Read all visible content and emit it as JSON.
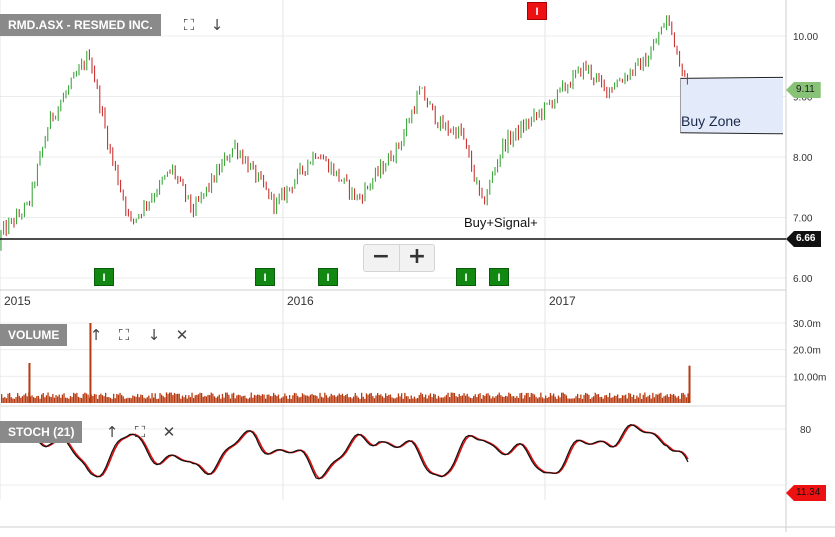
{
  "main": {
    "title": "RMD.ASX - RESMED INC.",
    "annotation_buy_signal": "Buy+Signal+",
    "zone_label": "Buy Zone",
    "last_price_badge": "9.11",
    "support_badge": "6.66",
    "zoom_out_label": "−",
    "zoom_in_label": "+",
    "signal_label": "I",
    "y_ticks": [
      "10.00",
      "9.00",
      "8.00",
      "7.00",
      "6.00"
    ],
    "x_ticks": [
      "2015",
      "2016",
      "2017"
    ]
  },
  "volume": {
    "title": "VOLUME",
    "y_ticks": [
      "30.0m",
      "20.0m",
      "10.00m"
    ]
  },
  "stoch": {
    "title": "STOCH (21)",
    "y_ticks": [
      "80"
    ],
    "last_badge": "11.34"
  },
  "icons": {
    "expand": "expand-icon",
    "down": "arrow-down-icon",
    "up": "arrow-up-icon",
    "close": "close-icon"
  },
  "colors": {
    "up_candle": "#2aa02a",
    "down_candle": "#c62020",
    "volume": "#b83a10",
    "stoch_k": "#111111",
    "stoch_d": "#dd1111",
    "support_line": "#111111",
    "zone_fill": "#e3ebfb",
    "price_badge": "#88c276",
    "signal_buy": "#118811",
    "signal_alert": "#ee1111"
  },
  "chart_data": [
    {
      "type": "line",
      "series": [
        {
          "x": [
            "2014-11",
            "2015-01",
            "2015-02",
            "2015-04",
            "2015-05",
            "2015-06",
            "2015-08",
            "2015-09",
            "2015-11",
            "2016-01",
            "2016-03",
            "2016-05",
            "2016-07",
            "2016-08",
            "2016-09",
            "2016-10",
            "2016-11",
            "2016-12",
            "2017-02",
            "2017-04",
            "2017-05",
            "2017-07",
            "2017-08",
            "2017-09"
          ],
          "values": [
            6.5,
            7.2,
            8.6,
            9.7,
            8.1,
            6.9,
            7.8,
            7.1,
            8.2,
            7.2,
            8.1,
            7.3,
            8.2,
            9.1,
            8.5,
            8.4,
            7.2,
            8.2,
            8.8,
            9.5,
            9.1,
            9.6,
            10.3,
            9.1
          ]
        }
      ],
      "ylim": [
        5.8,
        10.5
      ],
      "support_level": 6.66,
      "last_value": 9.11,
      "buy_zone": [
        8.4,
        9.3
      ],
      "annotations": [
        "Buy+Signal+",
        "Buy Zone"
      ]
    },
    {
      "type": "bar",
      "title": "VOLUME",
      "categories": [
        "2014-11",
        "2015-01",
        "2015-04",
        "2015-07",
        "2015-10",
        "2016-01",
        "2016-04",
        "2016-07",
        "2016-10",
        "2017-01",
        "2017-04",
        "2017-07",
        "2017-09"
      ],
      "values": [
        3,
        15,
        30,
        4,
        3,
        4,
        4,
        3,
        3,
        3,
        3,
        3,
        14
      ],
      "ylim": [
        0,
        33
      ]
    },
    {
      "type": "line",
      "title": "STOCH (21)",
      "series": [
        {
          "x": [
            "2014-11",
            "2015-02",
            "2015-04",
            "2015-06",
            "2015-09",
            "2015-12",
            "2016-03",
            "2016-06",
            "2016-09",
            "2016-11",
            "2017-02",
            "2017-05",
            "2017-08",
            "2017-09"
          ],
          "values": [
            85,
            88,
            10,
            80,
            12,
            85,
            15,
            90,
            10,
            88,
            15,
            85,
            90,
            11.34
          ]
        }
      ],
      "ylim": [
        0,
        100
      ],
      "last_value": 11.34
    }
  ]
}
